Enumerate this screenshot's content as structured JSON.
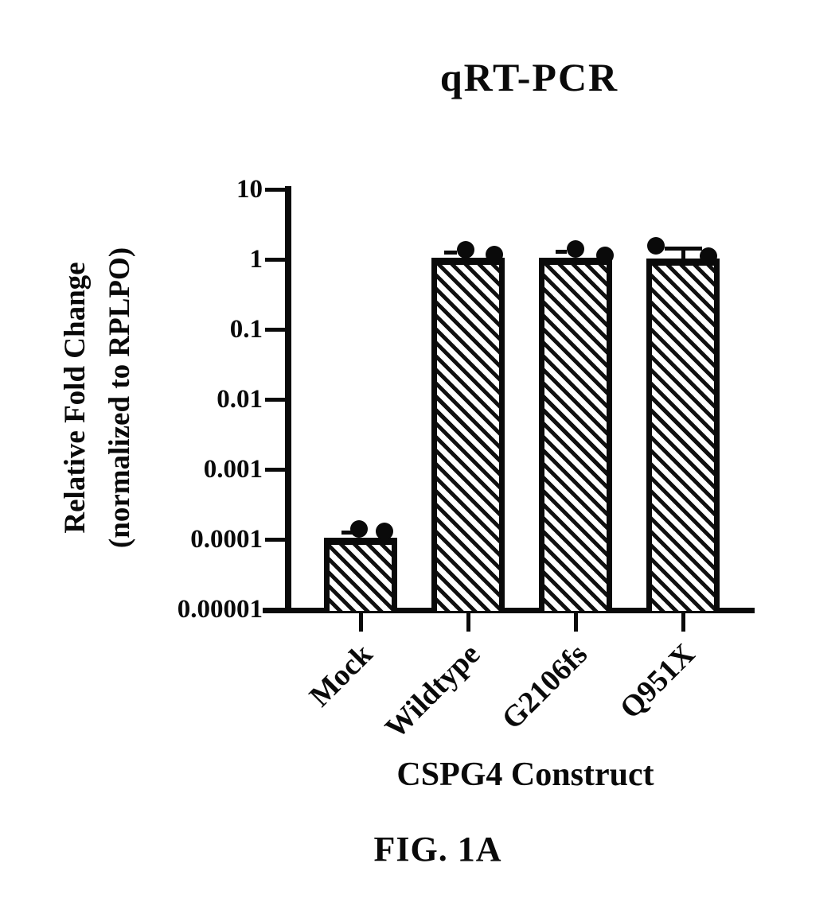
{
  "figure_label": "FIG. 1A",
  "chart_data": {
    "type": "bar",
    "title": "qRT-PCR",
    "xlabel": "CSPG4 Construct",
    "ylabel": "Relative Fold Change (normalized to RPLPO)",
    "ylabel_line1": "Relative Fold Change",
    "ylabel_line2": "(normalized to RPLPO)",
    "yscale": "log10",
    "ylim": [
      1e-05,
      10
    ],
    "grid": false,
    "legend": "none",
    "bar_fill": "black-diagonal-hatch",
    "ink_color": "#0a0a0a",
    "background_color": "#ffffff",
    "yticks": [
      {
        "value": 10,
        "label": "10"
      },
      {
        "value": 1,
        "label": "1"
      },
      {
        "value": 0.1,
        "label": "0.1"
      },
      {
        "value": 0.01,
        "label": "0.01"
      },
      {
        "value": 0.001,
        "label": "0.001"
      },
      {
        "value": 0.0001,
        "label": "0.0001"
      },
      {
        "value": 1e-05,
        "label": "0.00001"
      }
    ],
    "categories": [
      "Mock",
      "Wildtype",
      "G2106fs",
      "Q951X"
    ],
    "bar_values": [
      0.0001,
      1.0,
      1.0,
      0.97
    ],
    "replicate_points": [
      [
        {
          "dx": -2,
          "value": 0.00014
        },
        {
          "dx": 30,
          "value": 0.00013
        }
      ],
      [
        {
          "dx": -3,
          "value": 1.37
        },
        {
          "dx": 33,
          "value": 1.17
        }
      ],
      [
        {
          "dx": 0,
          "value": 1.4
        },
        {
          "dx": 37,
          "value": 1.15
        }
      ],
      [
        {
          "dx": -34,
          "value": 1.55
        },
        {
          "dx": 32,
          "value": 1.12
        }
      ]
    ],
    "error_caps": [
      {
        "dx": -16,
        "value": 0.000127,
        "width": 16,
        "connector": false
      },
      {
        "dx": -22,
        "value": 1.26,
        "width": 16,
        "connector": false
      },
      {
        "dx": -18,
        "value": 1.3,
        "width": 14,
        "connector": false
      },
      {
        "dx": 0,
        "value": 1.45,
        "width": 47,
        "connector": true
      }
    ]
  }
}
